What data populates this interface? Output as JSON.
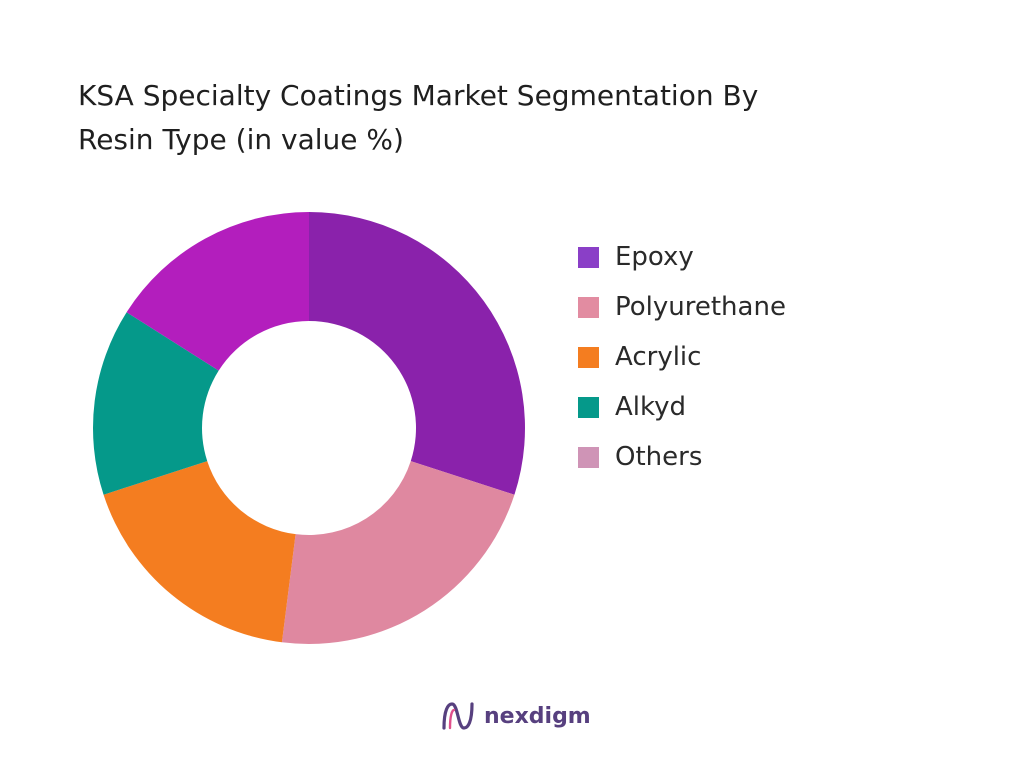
{
  "chart_data": {
    "type": "pie",
    "title_lines": [
      "KSA Specialty Coatings Market Segmentation By",
      "Resin Type (in value %)"
    ],
    "categories": [
      "Epoxy",
      "Polyurethane",
      "Acrylic",
      "Alkyd",
      "Others"
    ],
    "values": [
      30,
      22,
      18,
      14,
      16
    ],
    "colors": [
      "#8a22ab",
      "#df88a0",
      "#f47d20",
      "#05998a",
      "#b31ebd"
    ],
    "legend_colors": [
      "#8a3fc7",
      "#e28ca1",
      "#f47d20",
      "#05998a",
      "#cf94b6"
    ],
    "legend_placement": "right",
    "hole": "donut"
  },
  "brand": {
    "name": "nexdigm",
    "colors": {
      "logo_purple": "#57407f",
      "logo_pink": "#e04f8c"
    }
  }
}
